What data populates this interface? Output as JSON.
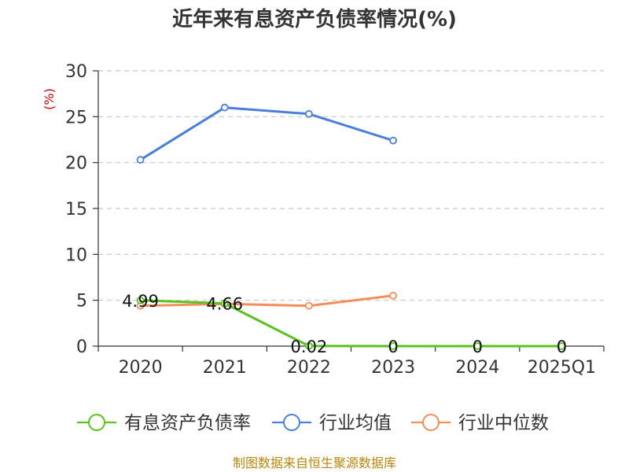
{
  "chart_data": {
    "type": "line",
    "title": "近年来有息资产负债率情况(%)",
    "ylabel": "(%)",
    "xlabel": "",
    "categories": [
      "2020",
      "2021",
      "2022",
      "2023",
      "2024",
      "2025Q1"
    ],
    "ylim": [
      0,
      30
    ],
    "yticks": [
      0,
      5,
      10,
      15,
      20,
      25,
      30
    ],
    "grid": "horizontal-dashed",
    "legend_position": "bottom",
    "series": [
      {
        "name": "有息资产负债率",
        "color": "#5ac21f",
        "values": [
          4.99,
          4.66,
          0.02,
          0,
          0,
          0
        ],
        "labels": [
          "4.99",
          "4.66",
          "0.02",
          "0",
          "0",
          "0"
        ]
      },
      {
        "name": "行业均值",
        "color": "#4a7fdc",
        "values": [
          20.3,
          26.0,
          25.3,
          22.4,
          null,
          null
        ]
      },
      {
        "name": "行业中位数",
        "color": "#f28e5a",
        "values": [
          4.4,
          4.6,
          4.4,
          5.5,
          null,
          null
        ]
      }
    ]
  },
  "source": "制图数据来自恒生聚源数据库"
}
